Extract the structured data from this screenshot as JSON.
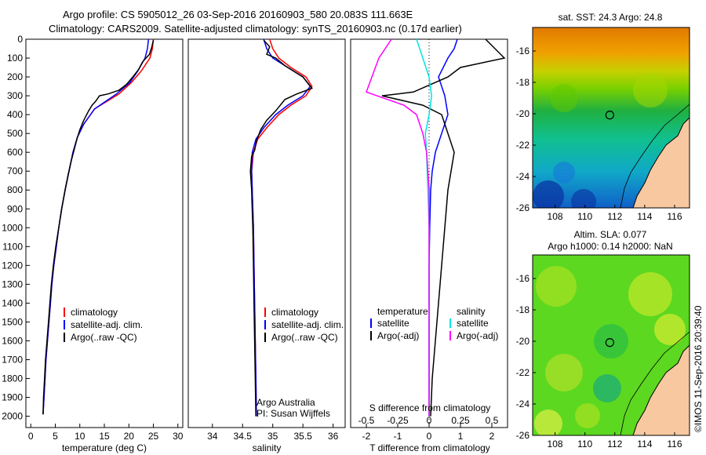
{
  "header": {
    "line1": "Argo profile: CS 5905012_26 03-Sep-2016 20160903_580 20.083S 111.663E",
    "line2": "Climatology: CARS2009. Satellite-adjusted climatology: synTS_20160903.nc (0.17d earlier)"
  },
  "colors": {
    "climatology": "#ff0000",
    "satellite": "#0000ff",
    "argo": "#000000",
    "argo_salinity_diff": "#ff00ff",
    "satellite_salinity_diff": "#00e5e5",
    "land": "#f8c8a0"
  },
  "chart_data": [
    {
      "type": "line",
      "xlabel": "temperature (deg C)",
      "ylabel": "",
      "xlim": [
        -1,
        31
      ],
      "ylim": [
        2060,
        0
      ],
      "x_ticks": [
        "0",
        "5",
        "10",
        "15",
        "20",
        "25",
        "30"
      ],
      "y_ticks": [
        "0",
        "100",
        "200",
        "300",
        "400",
        "500",
        "600",
        "700",
        "800",
        "900",
        "1000",
        "1100",
        "1200",
        "1300",
        "1400",
        "1500",
        "1600",
        "1700",
        "1800",
        "1900",
        "2000"
      ],
      "legend": {
        "placement": "center-left",
        "entries": [
          "climatology",
          "satellite-adj. clim.",
          "Argo(..raw -QC)"
        ]
      },
      "series": [
        {
          "key": "clim",
          "values": [
            [
              25.0,
              0
            ],
            [
              24.8,
              50
            ],
            [
              24.3,
              100
            ],
            [
              22.5,
              170
            ],
            [
              20.5,
              230
            ],
            [
              18.0,
              290
            ],
            [
              13.0,
              370
            ],
            [
              10.8,
              450
            ],
            [
              9.5,
              520
            ],
            [
              8.6,
              600
            ],
            [
              7.8,
              700
            ],
            [
              7.0,
              800
            ],
            [
              6.3,
              900
            ],
            [
              5.7,
              1000
            ],
            [
              5.2,
              1100
            ],
            [
              4.7,
              1200
            ],
            [
              4.3,
              1300
            ],
            [
              4.0,
              1400
            ],
            [
              3.7,
              1500
            ],
            [
              3.4,
              1600
            ],
            [
              3.1,
              1700
            ],
            [
              2.9,
              1800
            ],
            [
              2.7,
              1900
            ],
            [
              2.5,
              1990
            ]
          ]
        },
        {
          "key": "sat",
          "values": [
            [
              24.0,
              0
            ],
            [
              23.8,
              50
            ],
            [
              23.3,
              100
            ],
            [
              21.8,
              170
            ],
            [
              20.2,
              230
            ],
            [
              17.5,
              290
            ],
            [
              13.0,
              370
            ],
            [
              10.8,
              450
            ],
            [
              9.5,
              520
            ],
            [
              8.6,
              600
            ],
            [
              7.8,
              700
            ],
            [
              7.0,
              800
            ],
            [
              6.3,
              900
            ],
            [
              5.7,
              1000
            ],
            [
              5.2,
              1100
            ],
            [
              4.7,
              1200
            ],
            [
              4.3,
              1300
            ],
            [
              4.0,
              1400
            ],
            [
              3.7,
              1500
            ],
            [
              3.4,
              1600
            ],
            [
              3.1,
              1700
            ],
            [
              2.9,
              1800
            ],
            [
              2.7,
              1900
            ],
            [
              2.5,
              1990
            ]
          ]
        },
        {
          "key": "argo",
          "values": [
            [
              25.0,
              5
            ],
            [
              24.7,
              40
            ],
            [
              24.2,
              80
            ],
            [
              22.8,
              120
            ],
            [
              22.0,
              160
            ],
            [
              20.8,
              200
            ],
            [
              19.5,
              240
            ],
            [
              18.0,
              270
            ],
            [
              15.8,
              290
            ],
            [
              14.0,
              300
            ],
            [
              13.2,
              330
            ],
            [
              12.5,
              350
            ],
            [
              11.8,
              380
            ],
            [
              10.8,
              430
            ],
            [
              10.0,
              480
            ],
            [
              9.4,
              530
            ],
            [
              8.8,
              590
            ],
            [
              8.2,
              650
            ],
            [
              7.6,
              720
            ],
            [
              7.0,
              800
            ],
            [
              6.3,
              900
            ],
            [
              5.7,
              1000
            ],
            [
              5.1,
              1100
            ],
            [
              4.6,
              1200
            ],
            [
              4.2,
              1300
            ],
            [
              3.9,
              1400
            ],
            [
              3.6,
              1500
            ],
            [
              3.3,
              1600
            ],
            [
              3.0,
              1700
            ],
            [
              2.8,
              1800
            ],
            [
              2.6,
              1900
            ],
            [
              2.5,
              1990
            ]
          ]
        }
      ]
    },
    {
      "type": "line",
      "xlabel": "salinity",
      "xlim": [
        33.6,
        36.2
      ],
      "ylim": [
        2060,
        0
      ],
      "x_ticks": [
        "34",
        "34.5",
        "35",
        "35.5",
        "36"
      ],
      "legend": {
        "placement": "center-right",
        "entries": [
          "climatology",
          "satellite-adj. clim.",
          "Argo(..raw -QC)"
        ]
      },
      "annotations": [
        "Argo Australia",
        "PI: Susan Wijffels"
      ],
      "series": [
        {
          "key": "clim",
          "values": [
            [
              34.95,
              0
            ],
            [
              35.0,
              50
            ],
            [
              35.1,
              100
            ],
            [
              35.3,
              150
            ],
            [
              35.55,
              200
            ],
            [
              35.65,
              250
            ],
            [
              35.55,
              300
            ],
            [
              35.3,
              350
            ],
            [
              35.1,
              400
            ],
            [
              34.9,
              470
            ],
            [
              34.75,
              530
            ],
            [
              34.68,
              600
            ],
            [
              34.65,
              700
            ],
            [
              34.66,
              800
            ],
            [
              34.67,
              900
            ],
            [
              34.68,
              1000
            ],
            [
              34.69,
              1200
            ],
            [
              34.7,
              1400
            ],
            [
              34.71,
              1600
            ],
            [
              34.72,
              1800
            ],
            [
              34.73,
              2000
            ]
          ]
        },
        {
          "key": "sat",
          "values": [
            [
              34.85,
              0
            ],
            [
              34.9,
              50
            ],
            [
              35.0,
              100
            ],
            [
              35.25,
              150
            ],
            [
              35.5,
              200
            ],
            [
              35.62,
              250
            ],
            [
              35.5,
              300
            ],
            [
              35.25,
              350
            ],
            [
              35.05,
              400
            ],
            [
              34.85,
              470
            ],
            [
              34.72,
              530
            ],
            [
              34.66,
              600
            ],
            [
              34.65,
              700
            ],
            [
              34.66,
              800
            ],
            [
              34.67,
              900
            ],
            [
              34.68,
              1000
            ],
            [
              34.69,
              1200
            ],
            [
              34.7,
              1400
            ],
            [
              34.71,
              1600
            ],
            [
              34.72,
              1800
            ],
            [
              34.73,
              2000
            ]
          ]
        },
        {
          "key": "argo",
          "values": [
            [
              34.85,
              5
            ],
            [
              34.95,
              40
            ],
            [
              34.9,
              80
            ],
            [
              35.05,
              100
            ],
            [
              35.2,
              140
            ],
            [
              35.5,
              200
            ],
            [
              35.65,
              260
            ],
            [
              35.4,
              290
            ],
            [
              35.2,
              320
            ],
            [
              35.05,
              380
            ],
            [
              34.9,
              430
            ],
            [
              34.8,
              480
            ],
            [
              34.73,
              540
            ],
            [
              34.7,
              590
            ],
            [
              34.65,
              620
            ],
            [
              34.63,
              700
            ],
            [
              34.65,
              800
            ],
            [
              34.66,
              900
            ],
            [
              34.67,
              1000
            ],
            [
              34.68,
              1200
            ],
            [
              34.69,
              1400
            ],
            [
              34.7,
              1600
            ],
            [
              34.71,
              1800
            ],
            [
              34.72,
              2000
            ]
          ]
        }
      ]
    },
    {
      "type": "line",
      "xlabel": "T difference from climatology",
      "x2label": "S difference from climatology",
      "xlim": [
        -2.5,
        2.5
      ],
      "x2lim": [
        -0.625,
        0.625
      ],
      "ylim": [
        2060,
        0
      ],
      "x_ticks": [
        "-2",
        "-1",
        "0",
        "1",
        "2"
      ],
      "x2_ticks": [
        "-0.5",
        "-0.25",
        "0",
        "0.25",
        "0.5"
      ],
      "legend": {
        "placement": "center",
        "titles": [
          "temperature",
          "salinity"
        ],
        "entries": [
          "satellite",
          "Argo(-adj)",
          "satellite",
          "Argo(-adj)"
        ]
      },
      "series": [
        {
          "key": "t_sat",
          "axis": "T",
          "values": [
            [
              0.9,
              0
            ],
            [
              0.8,
              50
            ],
            [
              0.6,
              100
            ],
            [
              0.3,
              200
            ],
            [
              0.5,
              300
            ],
            [
              0.6,
              400
            ],
            [
              0.4,
              500
            ],
            [
              0.2,
              600
            ],
            [
              0.1,
              700
            ],
            [
              0.05,
              800
            ],
            [
              0.02,
              1000
            ],
            [
              0.0,
              1200
            ],
            [
              0.0,
              1500
            ],
            [
              0.0,
              2000
            ]
          ]
        },
        {
          "key": "t_argo",
          "axis": "T",
          "values": [
            [
              1.8,
              0
            ],
            [
              2.4,
              100
            ],
            [
              1.0,
              150
            ],
            [
              0.6,
              200
            ],
            [
              -0.5,
              280
            ],
            [
              -1.5,
              300
            ],
            [
              -0.2,
              350
            ],
            [
              0.4,
              400
            ],
            [
              0.6,
              500
            ],
            [
              0.8,
              600
            ],
            [
              0.7,
              700
            ],
            [
              0.6,
              800
            ],
            [
              0.5,
              1000
            ],
            [
              0.4,
              1200
            ],
            [
              0.3,
              1400
            ],
            [
              0.2,
              1600
            ],
            [
              0.1,
              1800
            ],
            [
              0.05,
              2000
            ]
          ]
        },
        {
          "key": "s_sat",
          "axis": "S",
          "values": [
            [
              -0.1,
              0
            ],
            [
              -0.05,
              100
            ],
            [
              0.0,
              200
            ],
            [
              0.02,
              300
            ],
            [
              0.0,
              400
            ],
            [
              -0.03,
              500
            ],
            [
              -0.02,
              600
            ],
            [
              -0.01,
              800
            ],
            [
              0.0,
              1000
            ],
            [
              0.0,
              1500
            ],
            [
              0.0,
              2000
            ]
          ]
        },
        {
          "key": "s_argo",
          "axis": "S",
          "values": [
            [
              -0.3,
              0
            ],
            [
              -0.4,
              100
            ],
            [
              -0.5,
              280
            ],
            [
              -0.2,
              350
            ],
            [
              -0.1,
              400
            ],
            [
              -0.05,
              500
            ],
            [
              -0.02,
              600
            ],
            [
              0.0,
              800
            ],
            [
              0.0,
              1200
            ],
            [
              0.0,
              2000
            ]
          ]
        }
      ]
    },
    {
      "type": "heatmap",
      "title": "sat. SST: 24.3 Argo: 24.8",
      "xlim": [
        106.5,
        117
      ],
      "ylim": [
        -26,
        -14.5
      ],
      "x_ticks": [
        "108",
        "110",
        "112",
        "114",
        "116"
      ],
      "y_ticks": [
        "-16",
        "-18",
        "-20",
        "-22",
        "-24",
        "-26"
      ],
      "point": [
        111.663,
        -20.083
      ]
    },
    {
      "type": "heatmap",
      "title": "Altim. SLA: 0.077",
      "subtitle": "Argo h1000: 0.14 h2000: NaN",
      "xlim": [
        106.5,
        117
      ],
      "ylim": [
        -26,
        -14.5
      ],
      "x_ticks": [
        "108",
        "110",
        "112",
        "114",
        "116"
      ],
      "y_ticks": [
        "-16",
        "-18",
        "-20",
        "-22",
        "-24",
        "-26"
      ],
      "point": [
        111.663,
        -20.083
      ]
    }
  ],
  "footer": {
    "stamp": "©IMOS 11-Sep-2016 20:39:40"
  }
}
